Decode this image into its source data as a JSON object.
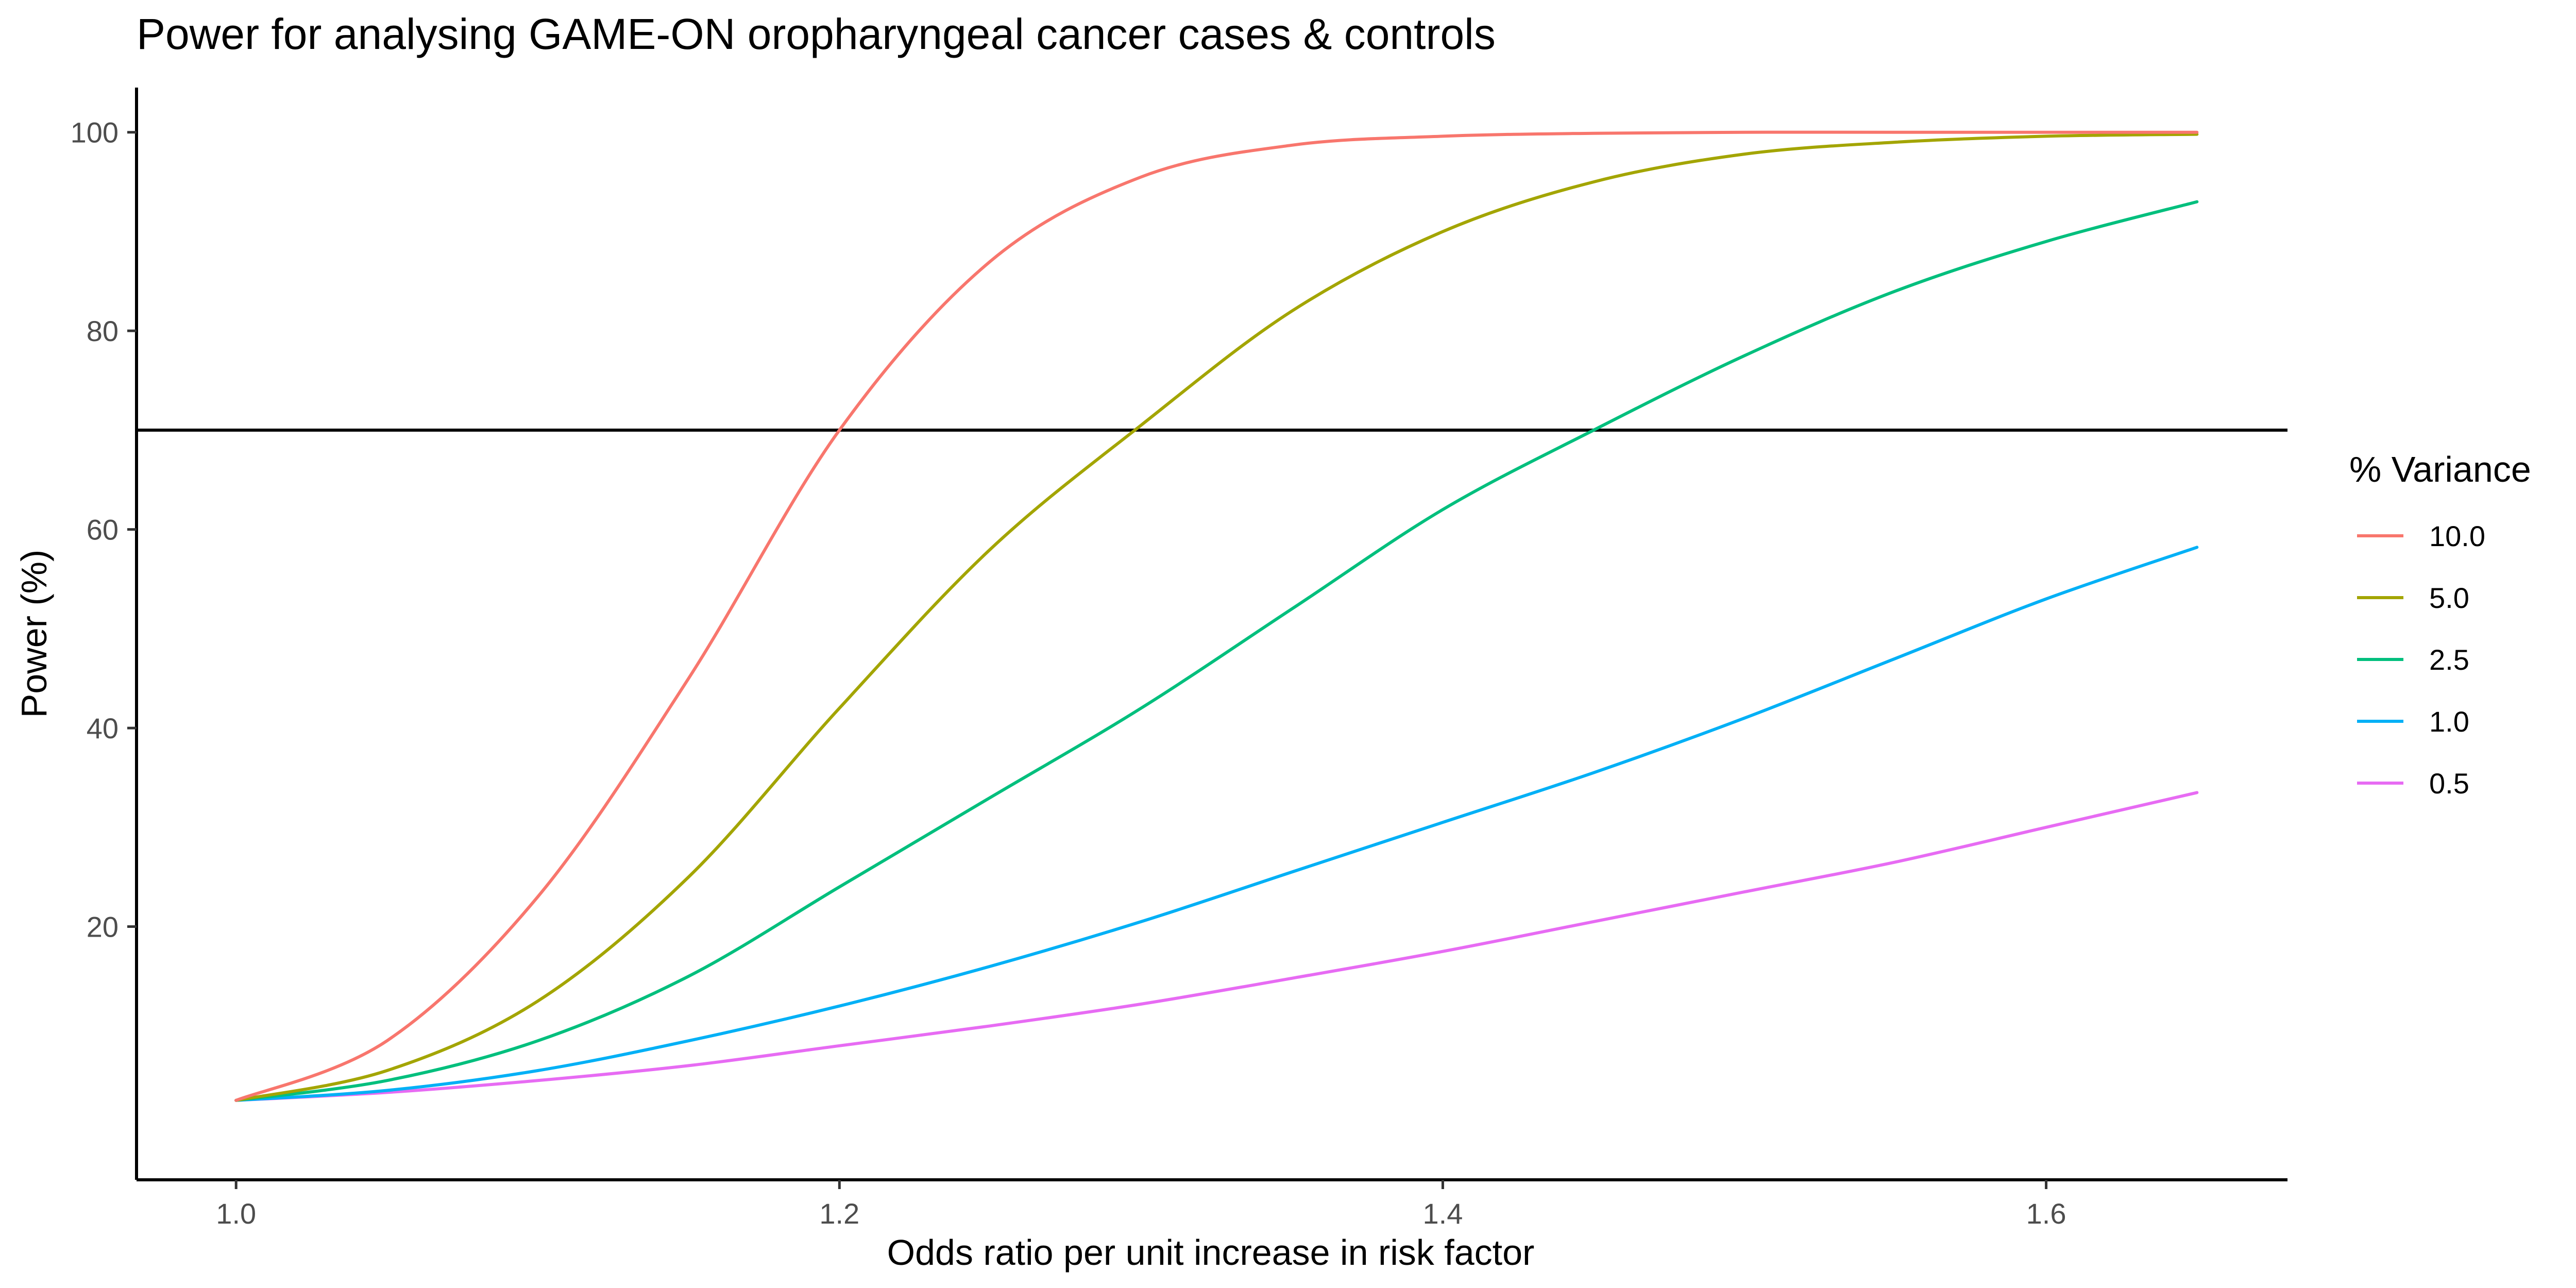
{
  "chart_data": {
    "type": "line",
    "title": "Power for analysing GAME-ON oropharyngeal cancer cases & controls",
    "xlabel": "Odds ratio per unit increase in risk factor",
    "ylabel": "Power (%)",
    "xlim": [
      0.967,
      1.68
    ],
    "ylim": [
      -5.5,
      104.5
    ],
    "xticks": [
      1.0,
      1.2,
      1.4,
      1.6
    ],
    "xtick_labels": [
      "1.0",
      "1.2",
      "1.4",
      "1.6"
    ],
    "yticks": [
      20,
      40,
      60,
      80,
      100
    ],
    "ytick_labels": [
      "20",
      "40",
      "60",
      "80",
      "100"
    ],
    "grid": false,
    "legend": {
      "title": "% Variance",
      "position": "right"
    },
    "reference_line": {
      "axis": "y",
      "value": 70,
      "color": "#000000"
    },
    "x": [
      1.0,
      1.05,
      1.1,
      1.15,
      1.2,
      1.25,
      1.3,
      1.35,
      1.4,
      1.45,
      1.5,
      1.55,
      1.6,
      1.65
    ],
    "series": [
      {
        "name": "10.0",
        "color": "#F8766D",
        "values": [
          2.5,
          8.5,
          23.0,
          45.0,
          70.0,
          87.0,
          95.5,
          98.7,
          99.6,
          99.9,
          100.0,
          100.0,
          100.0,
          100.0
        ]
      },
      {
        "name": "5.0",
        "color": "#A3A500",
        "values": [
          2.5,
          5.5,
          12.5,
          25.0,
          42.0,
          58.0,
          70.5,
          82.0,
          90.0,
          95.0,
          97.8,
          99.0,
          99.6,
          99.8
        ]
      },
      {
        "name": "2.5",
        "color": "#00BF7D",
        "values": [
          2.5,
          4.5,
          8.5,
          15.0,
          24.0,
          33.0,
          42.0,
          52.0,
          62.0,
          70.0,
          77.5,
          84.0,
          89.0,
          93.0
        ]
      },
      {
        "name": "1.0",
        "color": "#00B0F6",
        "values": [
          2.5,
          3.5,
          5.5,
          8.5,
          12.0,
          16.0,
          20.5,
          25.5,
          30.5,
          35.5,
          41.0,
          47.0,
          53.0,
          58.2
        ]
      },
      {
        "name": "0.5",
        "color": "#E76BF3",
        "values": [
          2.5,
          3.3,
          4.5,
          6.0,
          8.0,
          10.0,
          12.2,
          14.8,
          17.5,
          20.5,
          23.5,
          26.5,
          30.0,
          33.5
        ]
      }
    ]
  }
}
